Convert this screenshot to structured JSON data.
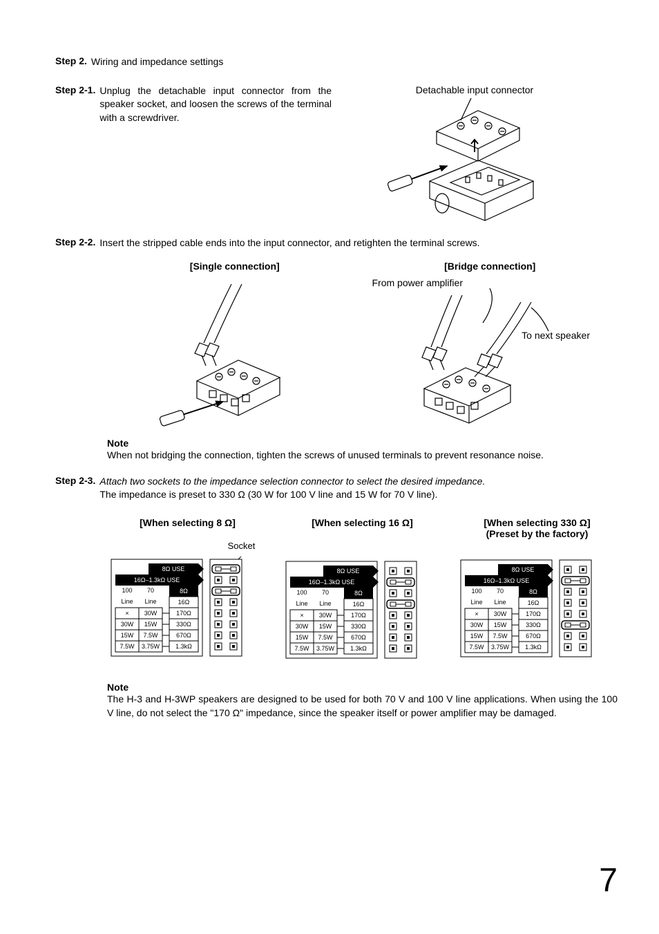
{
  "step2": {
    "label": "Step 2.",
    "text": "Wiring and impedance settings"
  },
  "step2_1": {
    "label": "Step 2-1.",
    "text": "Unplug the detachable input connector from the speaker socket, and loosen the screws of the terminal with a screwdriver."
  },
  "fig1": {
    "caption": "Detachable input connector"
  },
  "step2_2": {
    "label": "Step 2-2.",
    "text": "Insert the stripped cable ends into the input connector, and retighten the terminal screws."
  },
  "conn": {
    "single": "[Single connection]",
    "bridge": "[Bridge connection]",
    "from_amp": "From power amplifier",
    "to_next": "To next speaker"
  },
  "note1": {
    "label": "Note",
    "text": "When not bridging the connection, tighten the screws of unused terminals to prevent resonance noise."
  },
  "step2_3": {
    "label": "Step 2-3.",
    "line1": "Attach two sockets to the impedance selection connector to select the desired impedance.",
    "line2": "The impedance is preset to 330 Ω (30 W for 100 V line and 15 W for 70 V line)."
  },
  "impedance": {
    "socket_label": "Socket",
    "col1": {
      "title": "[When selecting 8 Ω]"
    },
    "col2": {
      "title": "[When selecting 16 Ω]"
    },
    "col3": {
      "title": "[When selecting 330 Ω]",
      "subtitle": "(Preset by the factory)"
    },
    "table": {
      "r0": {
        "left": "8Ω USE"
      },
      "r1": {
        "left": "16Ω–1.3kΩ USE"
      },
      "hdr": {
        "c1": "100",
        "c2": "70",
        "right": "8Ω"
      },
      "hdr2": {
        "c1": "Line",
        "c2": "Line",
        "right": "16Ω"
      },
      "d1": {
        "c1": "×",
        "c2": "30W",
        "right": "170Ω"
      },
      "d2": {
        "c1": "30W",
        "c2": "15W",
        "right": "330Ω"
      },
      "d3": {
        "c1": "15W",
        "c2": "7.5W",
        "right": "670Ω"
      },
      "d4": {
        "c1": "7.5W",
        "c2": "3.75W",
        "right": "1.3kΩ"
      }
    }
  },
  "note2": {
    "label": "Note",
    "text": "The H-3 and H-3WP speakers are designed to be used for both 70 V and 100 V line applications. When using the 100 V line, do not select the \"170 Ω\" impedance, since the speaker itself or power amplifier may be damaged."
  },
  "page_number": "7",
  "colors": {
    "stroke": "#000000",
    "fill_white": "#ffffff",
    "fill_grey": "#666666"
  }
}
